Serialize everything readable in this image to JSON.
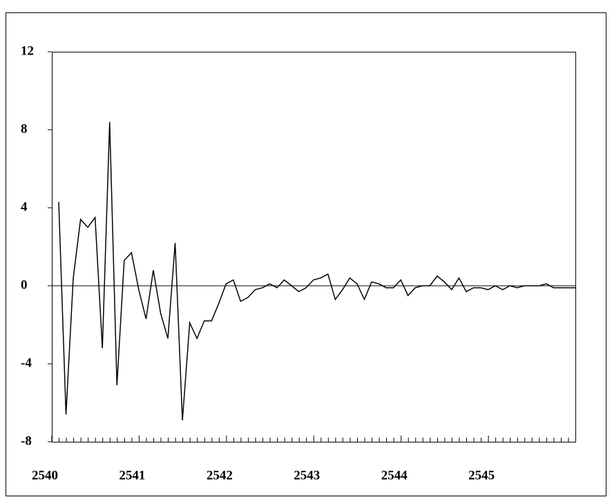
{
  "chart_data": {
    "type": "line",
    "categories": [
      "2540",
      null,
      null,
      null,
      null,
      null,
      null,
      null,
      null,
      null,
      null,
      null,
      "2541",
      null,
      null,
      null,
      null,
      null,
      null,
      null,
      null,
      null,
      null,
      null,
      "2542",
      null,
      null,
      null,
      null,
      null,
      null,
      null,
      null,
      null,
      null,
      null,
      "2543",
      null,
      null,
      null,
      null,
      null,
      null,
      null,
      null,
      null,
      null,
      null,
      "2544",
      null,
      null,
      null,
      null,
      null,
      null,
      null,
      null,
      null,
      null,
      null,
      "2545",
      null,
      null,
      null,
      null,
      null,
      null,
      null,
      null,
      null,
      null,
      null
    ],
    "series": [
      {
        "color": "#000000",
        "values": [
          4.3,
          -6.6,
          0.4,
          3.4,
          3.0,
          3.5,
          -3.2,
          8.4,
          -5.1,
          1.3,
          1.7,
          -0.2,
          -1.7,
          0.8,
          -1.4,
          -2.7,
          2.2,
          -6.9,
          -1.9,
          -2.7,
          -1.8,
          -1.8,
          -0.9,
          0.1,
          0.3,
          -0.8,
          -0.6,
          -0.2,
          -0.1,
          0.1,
          -0.1,
          0.3,
          0.0,
          -0.3,
          -0.1,
          0.3,
          0.4,
          0.6,
          -0.7,
          -0.2,
          0.4,
          0.1,
          -0.7,
          0.2,
          0.1,
          -0.1,
          -0.1,
          0.3,
          -0.5,
          -0.1,
          0.0,
          0.0,
          0.5,
          0.2,
          -0.2,
          0.4,
          -0.3,
          -0.1,
          -0.1,
          -0.2,
          0.0,
          -0.2,
          0.0,
          -0.1,
          0.0,
          0.0,
          0.0,
          0.1,
          -0.1,
          -0.1,
          -0.1,
          -0.1
        ]
      }
    ],
    "ylim": [
      -8,
      12
    ],
    "yticks": [
      -8,
      -4,
      0,
      4,
      8,
      12
    ],
    "zero_line": true
  }
}
